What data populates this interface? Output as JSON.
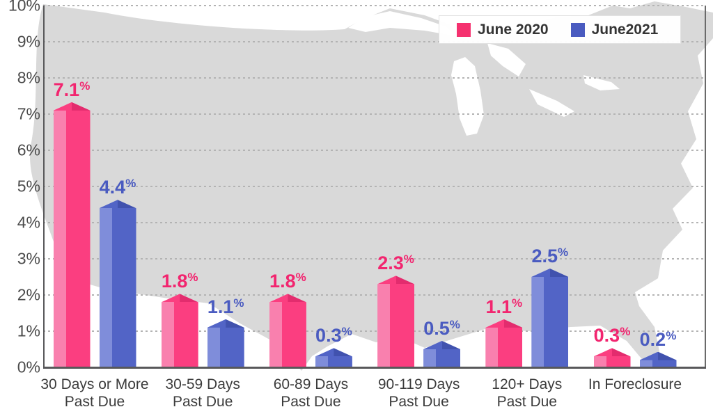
{
  "chart_data": {
    "type": "bar",
    "title": "",
    "categories": [
      [
        "30 Days or More",
        "Past Due"
      ],
      [
        "30-59 Days",
        "Past Due"
      ],
      [
        "60-89 Days",
        "Past Due"
      ],
      [
        "90-119 Days",
        "Past Due"
      ],
      [
        "120+ Days",
        "Past Due"
      ],
      [
        "In Foreclosure"
      ]
    ],
    "series": [
      {
        "name": "June 2020",
        "color_light": "#F980AE",
        "color_main": "#FB3E80",
        "color_dark": "#E32C6E",
        "label_color": "#F2256F",
        "swatch_color": "#F5316F",
        "values": [
          7.1,
          1.8,
          1.8,
          2.3,
          1.1,
          0.3
        ]
      },
      {
        "name": "June2021",
        "color_light": "#7F8DDA",
        "color_main": "#5264C6",
        "color_dark": "#4152AE",
        "label_color": "#4A5BC0",
        "swatch_color": "#4A5BC0",
        "values": [
          4.4,
          1.1,
          0.3,
          0.5,
          2.5,
          0.2
        ]
      }
    ],
    "value_suffix": "%",
    "ylim": [
      0,
      10
    ],
    "yticks": [
      "0%",
      "1%",
      "2%",
      "3%",
      "4%",
      "5%",
      "6%",
      "7%",
      "8%",
      "9%",
      "10%"
    ],
    "grid": "dashed horizontal gridlines at each 1%",
    "legend_position": "top-right",
    "background": "light gray silhouette of contiguous United States map",
    "map_color": "#d9d9d9"
  }
}
